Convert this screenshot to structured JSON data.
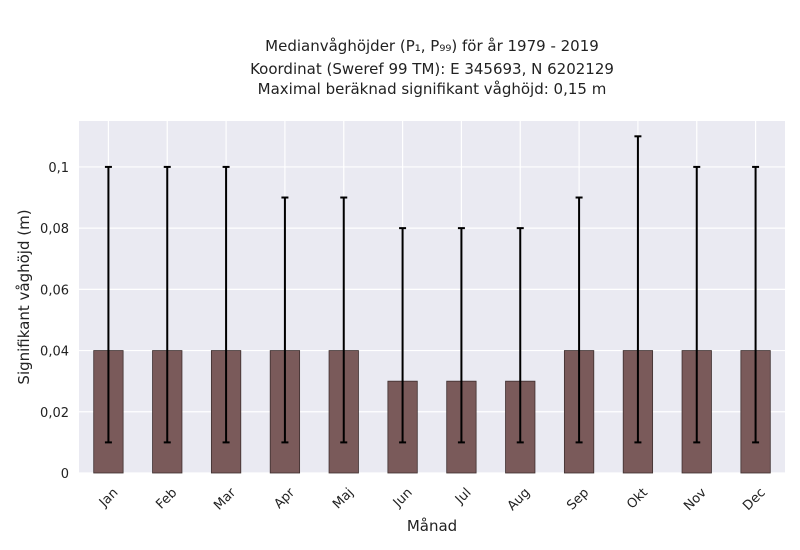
{
  "chart_data": {
    "type": "bar",
    "title": [
      "Medianvåghöjder (P₁, P₉₉) för år 1979 - 2019",
      "Koordinat (Sweref 99 TM): E 345693, N 6202129",
      "Maximal beräknad signifikant våghöjd: 0,15 m"
    ],
    "xlabel": "Månad",
    "ylabel": "Signifikant våghöjd (m)",
    "categories": [
      "Jan",
      "Feb",
      "Mar",
      "Apr",
      "Maj",
      "Jun",
      "Jul",
      "Aug",
      "Sep",
      "Okt",
      "Nov",
      "Dec"
    ],
    "values": [
      0.04,
      0.04,
      0.04,
      0.04,
      0.04,
      0.03,
      0.03,
      0.03,
      0.04,
      0.04,
      0.04,
      0.04
    ],
    "error_low": [
      0.01,
      0.01,
      0.01,
      0.01,
      0.01,
      0.01,
      0.01,
      0.01,
      0.01,
      0.01,
      0.01,
      0.01
    ],
    "error_high": [
      0.1,
      0.1,
      0.1,
      0.09,
      0.09,
      0.08,
      0.08,
      0.08,
      0.09,
      0.11,
      0.1,
      0.1
    ],
    "ylim": [
      0,
      0.115
    ],
    "yticks": [
      0,
      0.02,
      0.04,
      0.06,
      0.08,
      0.1
    ],
    "ytick_labels": [
      "0",
      "0,02",
      "0,04",
      "0,06",
      "0,08",
      "0,1"
    ],
    "grid": true,
    "colors": {
      "bar": "#7a5a5a",
      "bar_edge": "#3d2e2e",
      "plot_bg": "#eaeaf2",
      "grid": "#ffffff",
      "error": "#000000"
    }
  }
}
